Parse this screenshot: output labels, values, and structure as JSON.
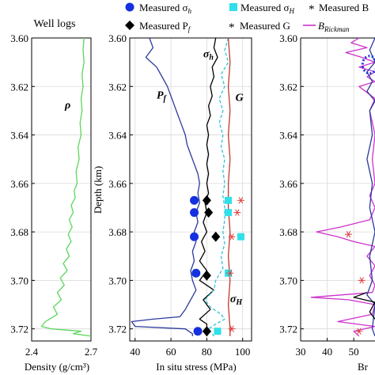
{
  "chart_data": [
    {
      "type": "line",
      "panel": "left",
      "title": "Well logs",
      "xlabel": "Density (g/cm³)",
      "ylabel": "",
      "xlim": [
        2.4,
        2.7
      ],
      "ylim": [
        3.6,
        3.725
      ],
      "x_ticks": [
        "2.4",
        "2.7"
      ],
      "y_ticks": [
        "3.60",
        "3.62",
        "3.64",
        "3.66",
        "3.68",
        "3.70",
        "3.72"
      ],
      "series": [
        {
          "name": "ρ",
          "color": "#5cd65c",
          "points": [
            [
              2.665,
              3.6
            ],
            [
              2.66,
              3.605
            ],
            [
              2.665,
              3.61
            ],
            [
              2.655,
              3.615
            ],
            [
              2.66,
              3.62
            ],
            [
              2.65,
              3.625
            ],
            [
              2.655,
              3.63
            ],
            [
              2.645,
              3.635
            ],
            [
              2.65,
              3.64
            ],
            [
              2.635,
              3.645
            ],
            [
              2.64,
              3.65
            ],
            [
              2.625,
              3.655
            ],
            [
              2.63,
              3.66
            ],
            [
              2.615,
              3.663
            ],
            [
              2.62,
              3.666
            ],
            [
              2.6,
              3.669
            ],
            [
              2.61,
              3.672
            ],
            [
              2.59,
              3.675
            ],
            [
              2.605,
              3.678
            ],
            [
              2.585,
              3.681
            ],
            [
              2.6,
              3.684
            ],
            [
              2.575,
              3.687
            ],
            [
              2.59,
              3.69
            ],
            [
              2.56,
              3.693
            ],
            [
              2.58,
              3.696
            ],
            [
              2.545,
              3.699
            ],
            [
              2.565,
              3.702
            ],
            [
              2.53,
              3.705
            ],
            [
              2.55,
              3.708
            ],
            [
              2.51,
              3.711
            ],
            [
              2.53,
              3.714
            ],
            [
              2.47,
              3.717
            ],
            [
              2.45,
              3.719
            ],
            [
              2.5,
              3.72
            ],
            [
              2.65,
              3.721
            ],
            [
              2.61,
              3.722
            ],
            [
              2.7,
              3.723
            ]
          ]
        }
      ]
    },
    {
      "type": "line+scatter",
      "panel": "middle",
      "title": "",
      "xlabel": "In situ stress (MPa)",
      "ylabel": "Depth (km)",
      "xlim": [
        37,
        105
      ],
      "ylim": [
        3.6,
        3.725
      ],
      "x_ticks": [
        40,
        60,
        80,
        100
      ],
      "y_ticks": [
        "3.60",
        "3.62",
        "3.64",
        "3.66",
        "3.68",
        "3.70",
        "3.72"
      ],
      "series": [
        {
          "name": "P_f",
          "color": "#2a3a9c",
          "dash": "solid",
          "points": [
            [
              48,
              3.6
            ],
            [
              50,
              3.604
            ],
            [
              46,
              3.608
            ],
            [
              52,
              3.612
            ],
            [
              55,
              3.616
            ],
            [
              58,
              3.62
            ],
            [
              60,
              3.624
            ],
            [
              62,
              3.628
            ],
            [
              64,
              3.632
            ],
            [
              66,
              3.636
            ],
            [
              68,
              3.64
            ],
            [
              69,
              3.644
            ],
            [
              71,
              3.648
            ],
            [
              73,
              3.652
            ],
            [
              75,
              3.656
            ],
            [
              76,
              3.66
            ],
            [
              75,
              3.664
            ],
            [
              76,
              3.668
            ],
            [
              74,
              3.672
            ],
            [
              75,
              3.676
            ],
            [
              73,
              3.68
            ],
            [
              74,
              3.684
            ],
            [
              72,
              3.688
            ],
            [
              73,
              3.692
            ],
            [
              71,
              3.696
            ],
            [
              72,
              3.7
            ],
            [
              74,
              3.704
            ],
            [
              71,
              3.708
            ],
            [
              68,
              3.712
            ],
            [
              65,
              3.715
            ],
            [
              50,
              3.716
            ],
            [
              38,
              3.717
            ],
            [
              40,
              3.719
            ],
            [
              68,
              3.72
            ],
            [
              72,
              3.722
            ],
            [
              72,
              3.723
            ]
          ]
        },
        {
          "name": "σ_h",
          "color": "#000000",
          "dash": "solid",
          "points": [
            [
              85,
              3.6
            ],
            [
              84,
              3.604
            ],
            [
              86,
              3.608
            ],
            [
              83,
              3.612
            ],
            [
              84,
              3.616
            ],
            [
              82,
              3.62
            ],
            [
              83,
              3.624
            ],
            [
              81,
              3.628
            ],
            [
              82,
              3.632
            ],
            [
              80,
              3.636
            ],
            [
              81,
              3.64
            ],
            [
              80,
              3.644
            ],
            [
              81,
              3.648
            ],
            [
              80,
              3.652
            ],
            [
              81,
              3.656
            ],
            [
              80,
              3.66
            ],
            [
              81,
              3.664
            ],
            [
              79,
              3.668
            ],
            [
              80,
              3.672
            ],
            [
              78,
              3.676
            ],
            [
              80,
              3.68
            ],
            [
              77,
              3.684
            ],
            [
              79,
              3.688
            ],
            [
              76,
              3.692
            ],
            [
              80,
              3.696
            ],
            [
              76,
              3.7
            ],
            [
              84,
              3.704
            ],
            [
              78,
              3.708
            ],
            [
              82,
              3.712
            ],
            [
              76,
              3.716
            ],
            [
              80,
              3.718
            ],
            [
              80,
              3.723
            ]
          ]
        },
        {
          "name": "σ_H",
          "color": "#33c3d6",
          "dash": "dashed",
          "points": [
            [
              92,
              3.6
            ],
            [
              90,
              3.605
            ],
            [
              92,
              3.61
            ],
            [
              88,
              3.615
            ],
            [
              90,
              3.62
            ],
            [
              87,
              3.625
            ],
            [
              89,
              3.63
            ],
            [
              87,
              3.635
            ],
            [
              89,
              3.64
            ],
            [
              88,
              3.645
            ],
            [
              90,
              3.65
            ],
            [
              89,
              3.655
            ],
            [
              90,
              3.66
            ],
            [
              89,
              3.665
            ],
            [
              90,
              3.67
            ],
            [
              90,
              3.675
            ],
            [
              89,
              3.68
            ],
            [
              90,
              3.685
            ],
            [
              88,
              3.69
            ],
            [
              89,
              3.695
            ],
            [
              85,
              3.7
            ],
            [
              84,
              3.704
            ],
            [
              79,
              3.708
            ],
            [
              82,
              3.711
            ],
            [
              88,
              3.714
            ],
            [
              90,
              3.716
            ],
            [
              85,
              3.718
            ],
            [
              81,
              3.72
            ],
            [
              84,
              3.723
            ]
          ]
        },
        {
          "name": "G",
          "color": "#c0392b",
          "dash": "solid",
          "points": [
            [
              92,
              3.6
            ],
            [
              93,
              3.61
            ],
            [
              92,
              3.62
            ],
            [
              93,
              3.63
            ],
            [
              92,
              3.64
            ],
            [
              93,
              3.65
            ],
            [
              92,
              3.66
            ],
            [
              92,
              3.67
            ],
            [
              93,
              3.68
            ],
            [
              92,
              3.69
            ],
            [
              93,
              3.7
            ],
            [
              92,
              3.71
            ],
            [
              93,
              3.72
            ],
            [
              93,
              3.723
            ]
          ]
        }
      ],
      "scatter": [
        {
          "name": "Measured σ_h",
          "marker": "circle",
          "color": "#1530e0",
          "points": [
            [
              73,
              3.667
            ],
            [
              73,
              3.672
            ],
            [
              73,
              3.682
            ],
            [
              74,
              3.697
            ],
            [
              75,
              3.721
            ]
          ]
        },
        {
          "name": "Measured σ_H",
          "marker": "square",
          "color": "#2fe0e8",
          "points": [
            [
              92,
              3.667
            ],
            [
              92,
              3.672
            ],
            [
              99,
              3.682
            ],
            [
              92,
              3.697
            ],
            [
              86,
              3.721
            ]
          ]
        },
        {
          "name": "Measured P_f",
          "marker": "diamond",
          "color": "#000000",
          "points": [
            [
              80,
              3.667
            ],
            [
              81,
              3.672
            ],
            [
              85,
              3.682
            ],
            [
              80,
              3.698
            ],
            [
              80,
              3.721
            ]
          ]
        },
        {
          "name": "Measured G",
          "marker": "asterisk",
          "color": "#e03a3a",
          "points": [
            [
              99,
              3.667
            ],
            [
              97,
              3.672
            ],
            [
              94,
              3.682
            ],
            [
              93,
              3.697
            ],
            [
              94,
              3.72
            ]
          ]
        }
      ],
      "curve_labels": [
        {
          "text": "P",
          "sub": "f",
          "x": 52,
          "y": 3.625,
          "color": "#2a3a9c"
        },
        {
          "text": "σ",
          "sub": "h",
          "x": 78,
          "y": 3.608,
          "color": "#000000"
        },
        {
          "text": "G",
          "sub": "",
          "x": 96,
          "y": 3.626,
          "color": "#c0392b"
        },
        {
          "text": "σ",
          "sub": "H",
          "x": 93,
          "y": 3.709,
          "color": "#33c3d6"
        }
      ]
    },
    {
      "type": "line",
      "panel": "right (clipped)",
      "title": "",
      "xlabel": "Br",
      "ylabel": "",
      "xlim": [
        30,
        58
      ],
      "ylim": [
        3.6,
        3.725
      ],
      "x_ticks": [
        30,
        40,
        50
      ],
      "y_ticks": [],
      "series": [
        {
          "name": "B_Rickman",
          "color": "#cc33cc",
          "dash": "solid",
          "points": [
            [
              52,
              3.6
            ],
            [
              49,
              3.602
            ],
            [
              55,
              3.604
            ],
            [
              47,
              3.606
            ],
            [
              53,
              3.608
            ],
            [
              58,
              3.61
            ],
            [
              52,
              3.612
            ],
            [
              58,
              3.614
            ],
            [
              55,
              3.616
            ],
            [
              58,
              3.618
            ],
            [
              52,
              3.62
            ],
            [
              58,
              3.625
            ],
            [
              56,
              3.63
            ],
            [
              58,
              3.64
            ],
            [
              57,
              3.65
            ],
            [
              58,
              3.66
            ],
            [
              56,
              3.665
            ],
            [
              58,
              3.67
            ],
            [
              56,
              3.675
            ],
            [
              45,
              3.678
            ],
            [
              36,
              3.68
            ],
            [
              44,
              3.682
            ],
            [
              50,
              3.684
            ],
            [
              58,
              3.686
            ],
            [
              55,
              3.69
            ],
            [
              58,
              3.694
            ],
            [
              56,
              3.698
            ],
            [
              58,
              3.702
            ],
            [
              57,
              3.705
            ],
            [
              34,
              3.707
            ],
            [
              48,
              3.708
            ],
            [
              58,
              3.71
            ],
            [
              57,
              3.714
            ],
            [
              44,
              3.717
            ],
            [
              58,
              3.719
            ],
            [
              50,
              3.721
            ],
            [
              52,
              3.723
            ]
          ]
        },
        {
          "name": "blue",
          "color": "#2a3a9c",
          "dash": "solid",
          "points": [
            [
              58,
              3.6
            ],
            [
              56,
              3.605
            ],
            [
              58,
              3.61
            ],
            [
              55,
              3.614
            ],
            [
              57,
              3.618
            ],
            [
              55,
              3.622
            ],
            [
              58,
              3.626
            ],
            [
              56,
              3.63
            ],
            [
              57,
              3.64
            ],
            [
              55,
              3.65
            ],
            [
              57,
              3.66
            ],
            [
              56,
              3.67
            ],
            [
              58,
              3.68
            ],
            [
              56,
              3.69
            ],
            [
              57,
              3.7
            ],
            [
              55,
              3.706
            ],
            [
              58,
              3.71
            ],
            [
              57,
              3.72
            ],
            [
              58,
              3.723
            ]
          ]
        },
        {
          "name": "black",
          "color": "#000000",
          "dash": "solid",
          "points": [
            [
              55,
              3.705
            ],
            [
              50,
              3.707
            ],
            [
              58,
              3.709
            ],
            [
              56,
              3.713
            ],
            [
              58,
              3.716
            ]
          ]
        }
      ],
      "scatter": [
        {
          "name": "Measured B",
          "marker": "asterisk",
          "color": "#e03a3a",
          "points": [
            [
              48,
              3.681
            ],
            [
              53,
              3.7
            ],
            [
              52,
              3.721
            ]
          ]
        },
        {
          "name": "dotted circle",
          "marker": "dotted-ring",
          "color": "#1530e0",
          "points": [
            [
              56,
              3.611
            ]
          ]
        }
      ]
    }
  ],
  "legend": {
    "measured_sigma_h": "Measured σ",
    "measured_sigma_h_sub": "h",
    "measured_sigma_H": "Measured σ",
    "measured_sigma_H_sub": "H",
    "measured_pf": "Measured P",
    "measured_pf_sub": "f",
    "measured_g": "Measured G",
    "measured_b": "Measured B",
    "b_rickman": "B",
    "b_rickman_sub": "Rickman"
  }
}
